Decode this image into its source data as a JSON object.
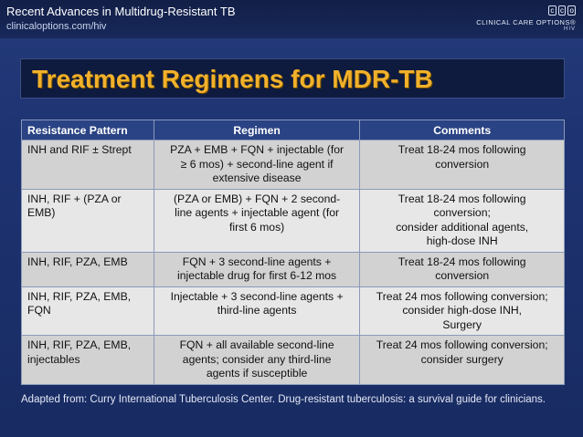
{
  "header": {
    "title": "Recent Advances in Multidrug-Resistant TB",
    "url": "clinicaloptions.com/hiv"
  },
  "logo": {
    "mark": [
      "c",
      "c",
      "o"
    ],
    "text": "CLINICAL CARE OPTIONS®",
    "sub": "HIV"
  },
  "page_title": "Treatment Regimens for MDR-TB",
  "table": {
    "headers": [
      "Resistance Pattern",
      "Regimen",
      "Comments"
    ],
    "rows": [
      {
        "pattern": "INH and RIF ± Strept",
        "regimen": [
          "PZA + EMB + FQN + injectable (for",
          "≥ 6 mos) + second-line agent if",
          "extensive disease"
        ],
        "comments": [
          "Treat 18-24 mos following",
          "conversion"
        ]
      },
      {
        "pattern": "INH, RIF + (PZA or EMB)",
        "regimen": [
          "(PZA or EMB) + FQN + 2 second-",
          "line agents + injectable agent (for",
          "first 6 mos)"
        ],
        "comments": [
          "Treat 18-24 mos following",
          "conversion;",
          "consider additional agents,",
          "high-dose INH"
        ]
      },
      {
        "pattern": "INH, RIF, PZA, EMB",
        "regimen": [
          "FQN + 3 second-line agents +",
          "injectable drug for first 6-12 mos"
        ],
        "comments": [
          "Treat 18-24 mos following",
          "conversion"
        ]
      },
      {
        "pattern": "INH, RIF, PZA, EMB, FQN",
        "regimen": [
          "Injectable + 3 second-line agents +",
          "third-line agents"
        ],
        "comments": [
          "Treat 24 mos following conversion;",
          "consider high-dose INH,",
          "Surgery"
        ]
      },
      {
        "pattern": "INH, RIF, PZA, EMB, injectables",
        "regimen": [
          "FQN + all available second-line",
          "agents; consider any third-line",
          "agents if susceptible"
        ],
        "comments": [
          "Treat 24 mos following conversion;",
          "consider surgery"
        ]
      }
    ]
  },
  "footnote": "Adapted from: Curry International Tuberculosis Center. Drug-resistant tuberculosis: a survival guide for clinicians."
}
